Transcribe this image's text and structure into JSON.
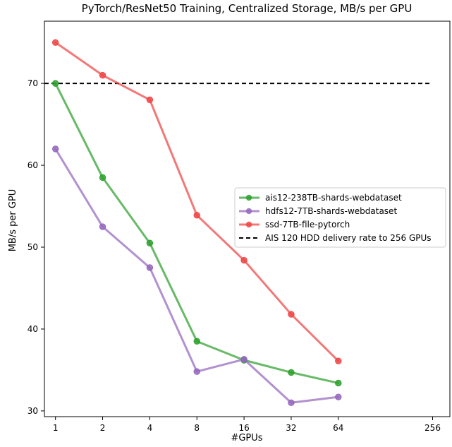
{
  "chart_data": {
    "type": "line",
    "title": "PyTorch/ResNet50 Training, Centralized Storage, MB/s per GPU",
    "xlabel": "#GPUs",
    "ylabel": "MB/s per GPU",
    "x_scale": "log2",
    "x_ticks": [
      1,
      2,
      4,
      8,
      16,
      32,
      64,
      256
    ],
    "y_ticks": [
      30,
      40,
      50,
      60,
      70
    ],
    "xlim": [
      0.85,
      330
    ],
    "ylim": [
      29.3,
      77.6
    ],
    "grid": false,
    "legend_position": "right",
    "series": [
      {
        "name": "ais12-238TB-shards-webdataset",
        "color": "#2ca02c",
        "x": [
          1,
          2,
          4,
          8,
          16,
          32,
          64
        ],
        "values": [
          70.0,
          58.5,
          50.5,
          38.5,
          36.2,
          34.7,
          33.4
        ]
      },
      {
        "name": "hdfs12-7TB-shards-webdataset",
        "color": "#9467bd",
        "x": [
          1,
          2,
          4,
          8,
          16,
          32,
          64
        ],
        "values": [
          62.0,
          52.5,
          47.5,
          34.8,
          36.3,
          31.0,
          31.7
        ]
      },
      {
        "name": "ssd-7TB-file-pytorch",
        "color": "#ef4444",
        "x": [
          1,
          2,
          4,
          8,
          16,
          32,
          64
        ],
        "values": [
          75.0,
          71.0,
          68.0,
          53.9,
          48.4,
          41.8,
          36.1
        ]
      }
    ],
    "reference_lines": [
      {
        "name": "AIS 120 HDD delivery rate to 256 GPUs",
        "value": 70,
        "color": "#000000",
        "style": "dashed"
      }
    ]
  }
}
